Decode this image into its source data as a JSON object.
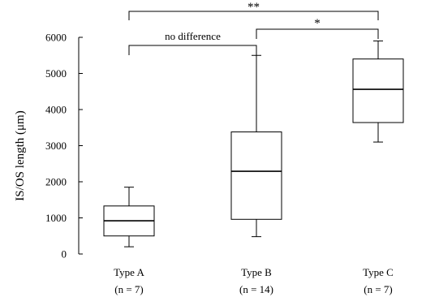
{
  "chart_data": {
    "type": "box",
    "title": "",
    "xlabel": "",
    "ylabel": "IS/OS length (μm)",
    "ylim": [
      0,
      6000
    ],
    "yticks": [
      0,
      1000,
      2000,
      3000,
      4000,
      5000,
      6000
    ],
    "grid": false,
    "legend": "none",
    "categories": [
      {
        "label": "Type A",
        "n_label": "(n = 7)",
        "min": 200,
        "q1": 500,
        "median": 920,
        "q3": 1330,
        "max": 1850
      },
      {
        "label": "Type B",
        "n_label": "(n = 14)",
        "min": 480,
        "q1": 960,
        "median": 2290,
        "q3": 3380,
        "max": 5500
      },
      {
        "label": "Type C",
        "n_label": "(n = 7)",
        "min": 3100,
        "q1": 3640,
        "median": 4560,
        "q3": 5400,
        "max": 5900
      }
    ],
    "comparisons": [
      {
        "from": 0,
        "to": 1,
        "label": "no difference"
      },
      {
        "from": 1,
        "to": 2,
        "label": "*"
      },
      {
        "from": 0,
        "to": 2,
        "label": "**"
      }
    ]
  }
}
